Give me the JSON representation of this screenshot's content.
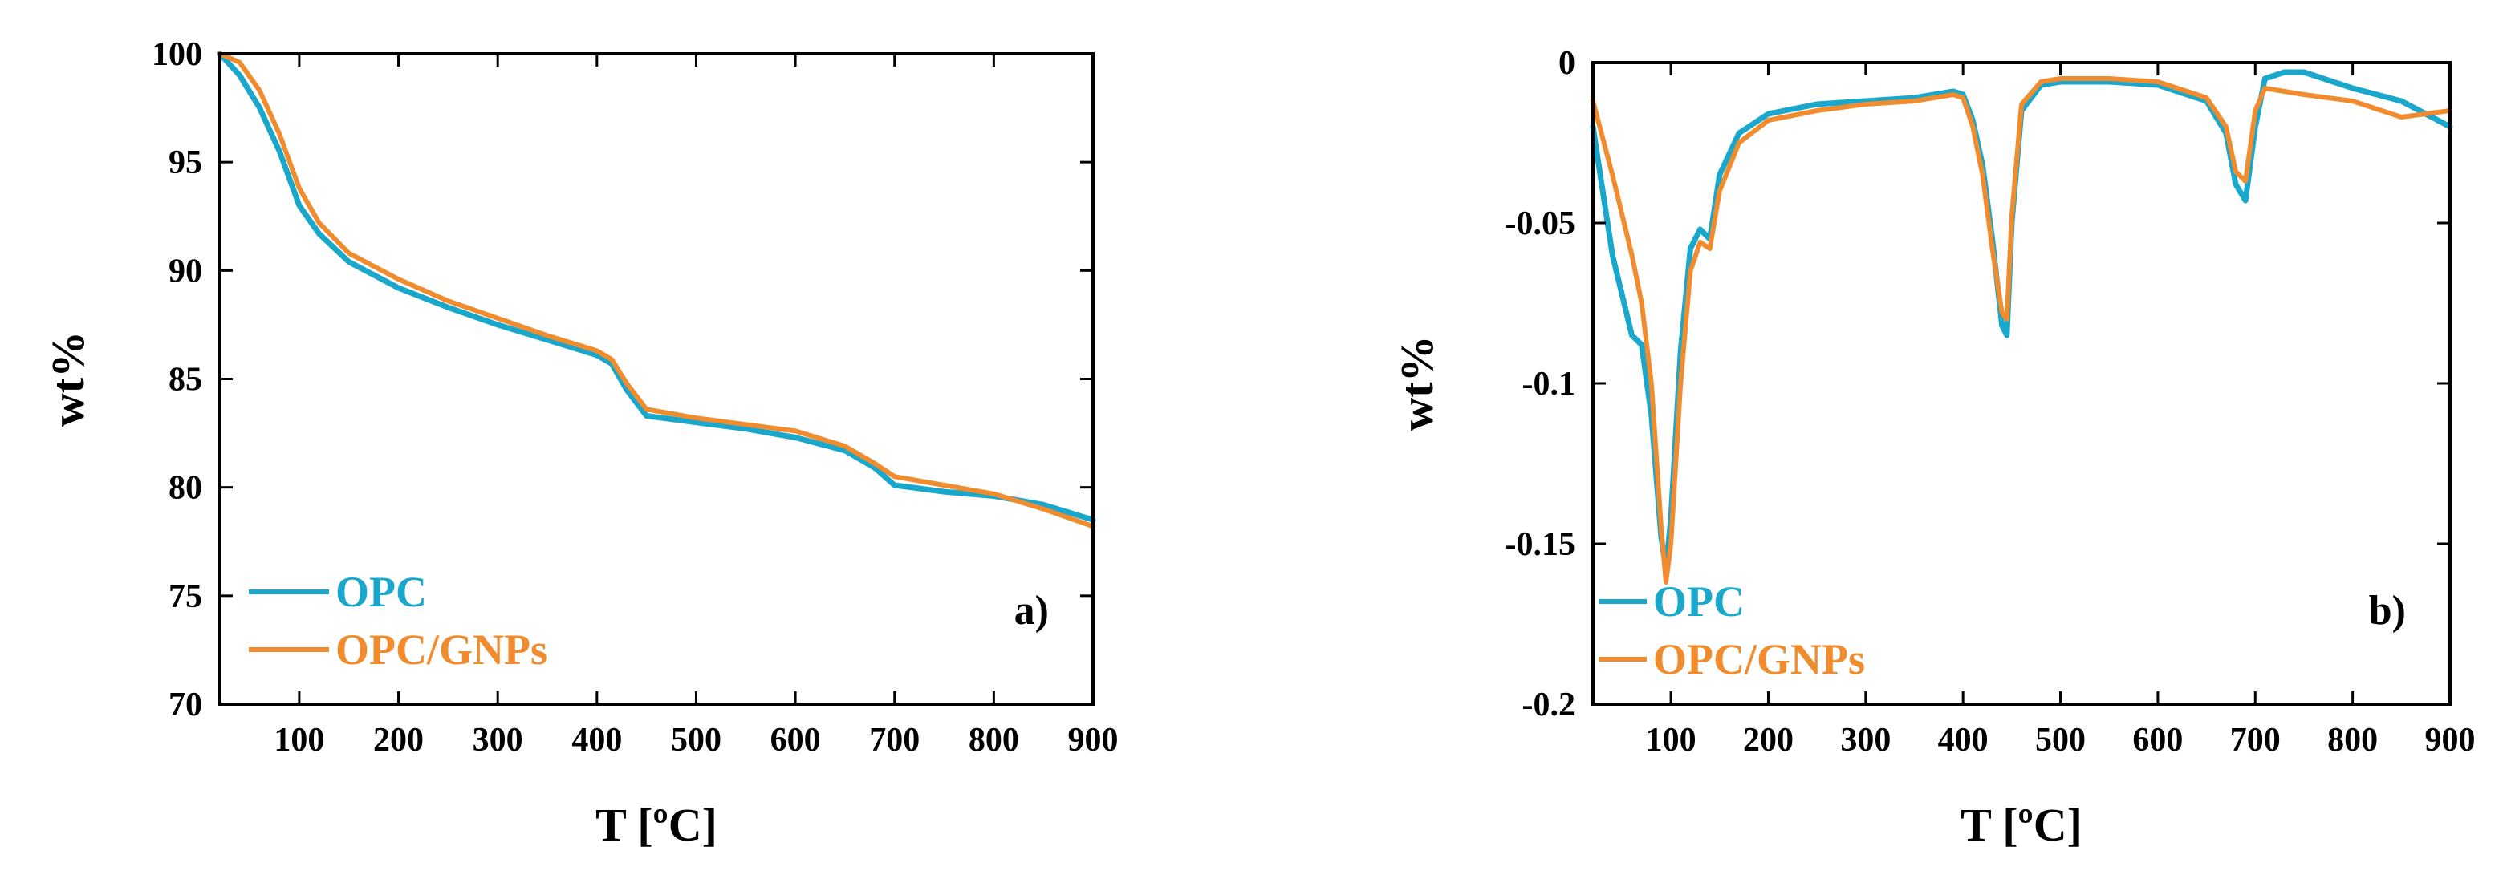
{
  "chart_data": [
    {
      "type": "line",
      "panel_label": "a)",
      "xlabel": "T [ºC]",
      "ylabel": "wt%",
      "xlim": [
        20,
        900
      ],
      "ylim": [
        70,
        100
      ],
      "xticks": [
        100,
        200,
        300,
        400,
        500,
        600,
        700,
        800,
        900
      ],
      "yticks": [
        70,
        75,
        80,
        85,
        90,
        95,
        100
      ],
      "legend_position": "bottom-left",
      "series": [
        {
          "name": "OPC",
          "color": "#1aa7cc",
          "x": [
            20,
            40,
            60,
            80,
            100,
            120,
            150,
            200,
            250,
            300,
            350,
            400,
            415,
            430,
            450,
            500,
            550,
            600,
            650,
            680,
            700,
            750,
            800,
            850,
            900
          ],
          "y": [
            100,
            99.0,
            97.5,
            95.5,
            93.0,
            91.7,
            90.4,
            89.2,
            88.3,
            87.5,
            86.8,
            86.1,
            85.7,
            84.5,
            83.3,
            83.0,
            82.7,
            82.3,
            81.7,
            80.9,
            80.1,
            79.8,
            79.6,
            79.2,
            78.5
          ]
        },
        {
          "name": "OPC/GNPs",
          "color": "#f08c2e",
          "x": [
            20,
            40,
            60,
            80,
            100,
            120,
            150,
            200,
            250,
            300,
            350,
            400,
            415,
            430,
            450,
            500,
            550,
            600,
            650,
            680,
            700,
            750,
            800,
            850,
            900
          ],
          "y": [
            100,
            99.6,
            98.3,
            96.3,
            93.8,
            92.2,
            90.8,
            89.6,
            88.6,
            87.8,
            87.0,
            86.3,
            85.9,
            84.8,
            83.6,
            83.2,
            82.9,
            82.6,
            81.9,
            81.1,
            80.5,
            80.1,
            79.7,
            79.0,
            78.2
          ]
        }
      ]
    },
    {
      "type": "line",
      "panel_label": "b)",
      "xlabel": "T [ºC]",
      "ylabel": "wt%",
      "xlim": [
        20,
        900
      ],
      "ylim": [
        -0.2,
        0
      ],
      "xticks": [
        100,
        200,
        300,
        400,
        500,
        600,
        700,
        800,
        900
      ],
      "xtick_labels": [
        "100",
        "200",
        "300",
        "400",
        "500",
        "600",
        "700",
        "800",
        "900"
      ],
      "yticks": [
        0,
        -0.05,
        -0.1,
        -0.15,
        -0.2
      ],
      "ytick_labels": [
        "0",
        "-0.05",
        "-0.1",
        "-0.15",
        "-0.2"
      ],
      "legend_position": "bottom-left",
      "series": [
        {
          "name": "OPC",
          "color": "#1aa7cc",
          "x": [
            20,
            40,
            60,
            70,
            80,
            90,
            95,
            100,
            110,
            120,
            130,
            140,
            150,
            170,
            200,
            250,
            300,
            350,
            390,
            400,
            410,
            420,
            430,
            440,
            445,
            450,
            460,
            480,
            500,
            550,
            600,
            650,
            670,
            680,
            690,
            700,
            710,
            730,
            750,
            800,
            850,
            900
          ],
          "y": [
            -0.02,
            -0.06,
            -0.085,
            -0.088,
            -0.11,
            -0.148,
            -0.158,
            -0.142,
            -0.09,
            -0.058,
            -0.052,
            -0.055,
            -0.035,
            -0.022,
            -0.016,
            -0.013,
            -0.012,
            -0.011,
            -0.009,
            -0.01,
            -0.018,
            -0.032,
            -0.055,
            -0.082,
            -0.085,
            -0.05,
            -0.015,
            -0.007,
            -0.006,
            -0.006,
            -0.007,
            -0.012,
            -0.022,
            -0.038,
            -0.043,
            -0.02,
            -0.005,
            -0.003,
            -0.003,
            -0.008,
            -0.012,
            -0.02
          ]
        },
        {
          "name": "OPC/GNPs",
          "color": "#f08c2e",
          "x": [
            20,
            40,
            60,
            70,
            80,
            90,
            95,
            100,
            110,
            120,
            130,
            140,
            150,
            170,
            200,
            250,
            300,
            350,
            390,
            400,
            410,
            420,
            430,
            440,
            445,
            450,
            460,
            480,
            500,
            550,
            600,
            650,
            670,
            680,
            690,
            700,
            710,
            730,
            750,
            800,
            850,
            900
          ],
          "y": [
            -0.012,
            -0.035,
            -0.06,
            -0.075,
            -0.1,
            -0.145,
            -0.162,
            -0.15,
            -0.1,
            -0.065,
            -0.056,
            -0.058,
            -0.04,
            -0.025,
            -0.018,
            -0.015,
            -0.013,
            -0.012,
            -0.01,
            -0.011,
            -0.02,
            -0.035,
            -0.058,
            -0.078,
            -0.08,
            -0.048,
            -0.013,
            -0.006,
            -0.005,
            -0.005,
            -0.006,
            -0.011,
            -0.02,
            -0.034,
            -0.037,
            -0.015,
            -0.008,
            -0.009,
            -0.01,
            -0.012,
            -0.017,
            -0.015
          ]
        }
      ]
    }
  ]
}
